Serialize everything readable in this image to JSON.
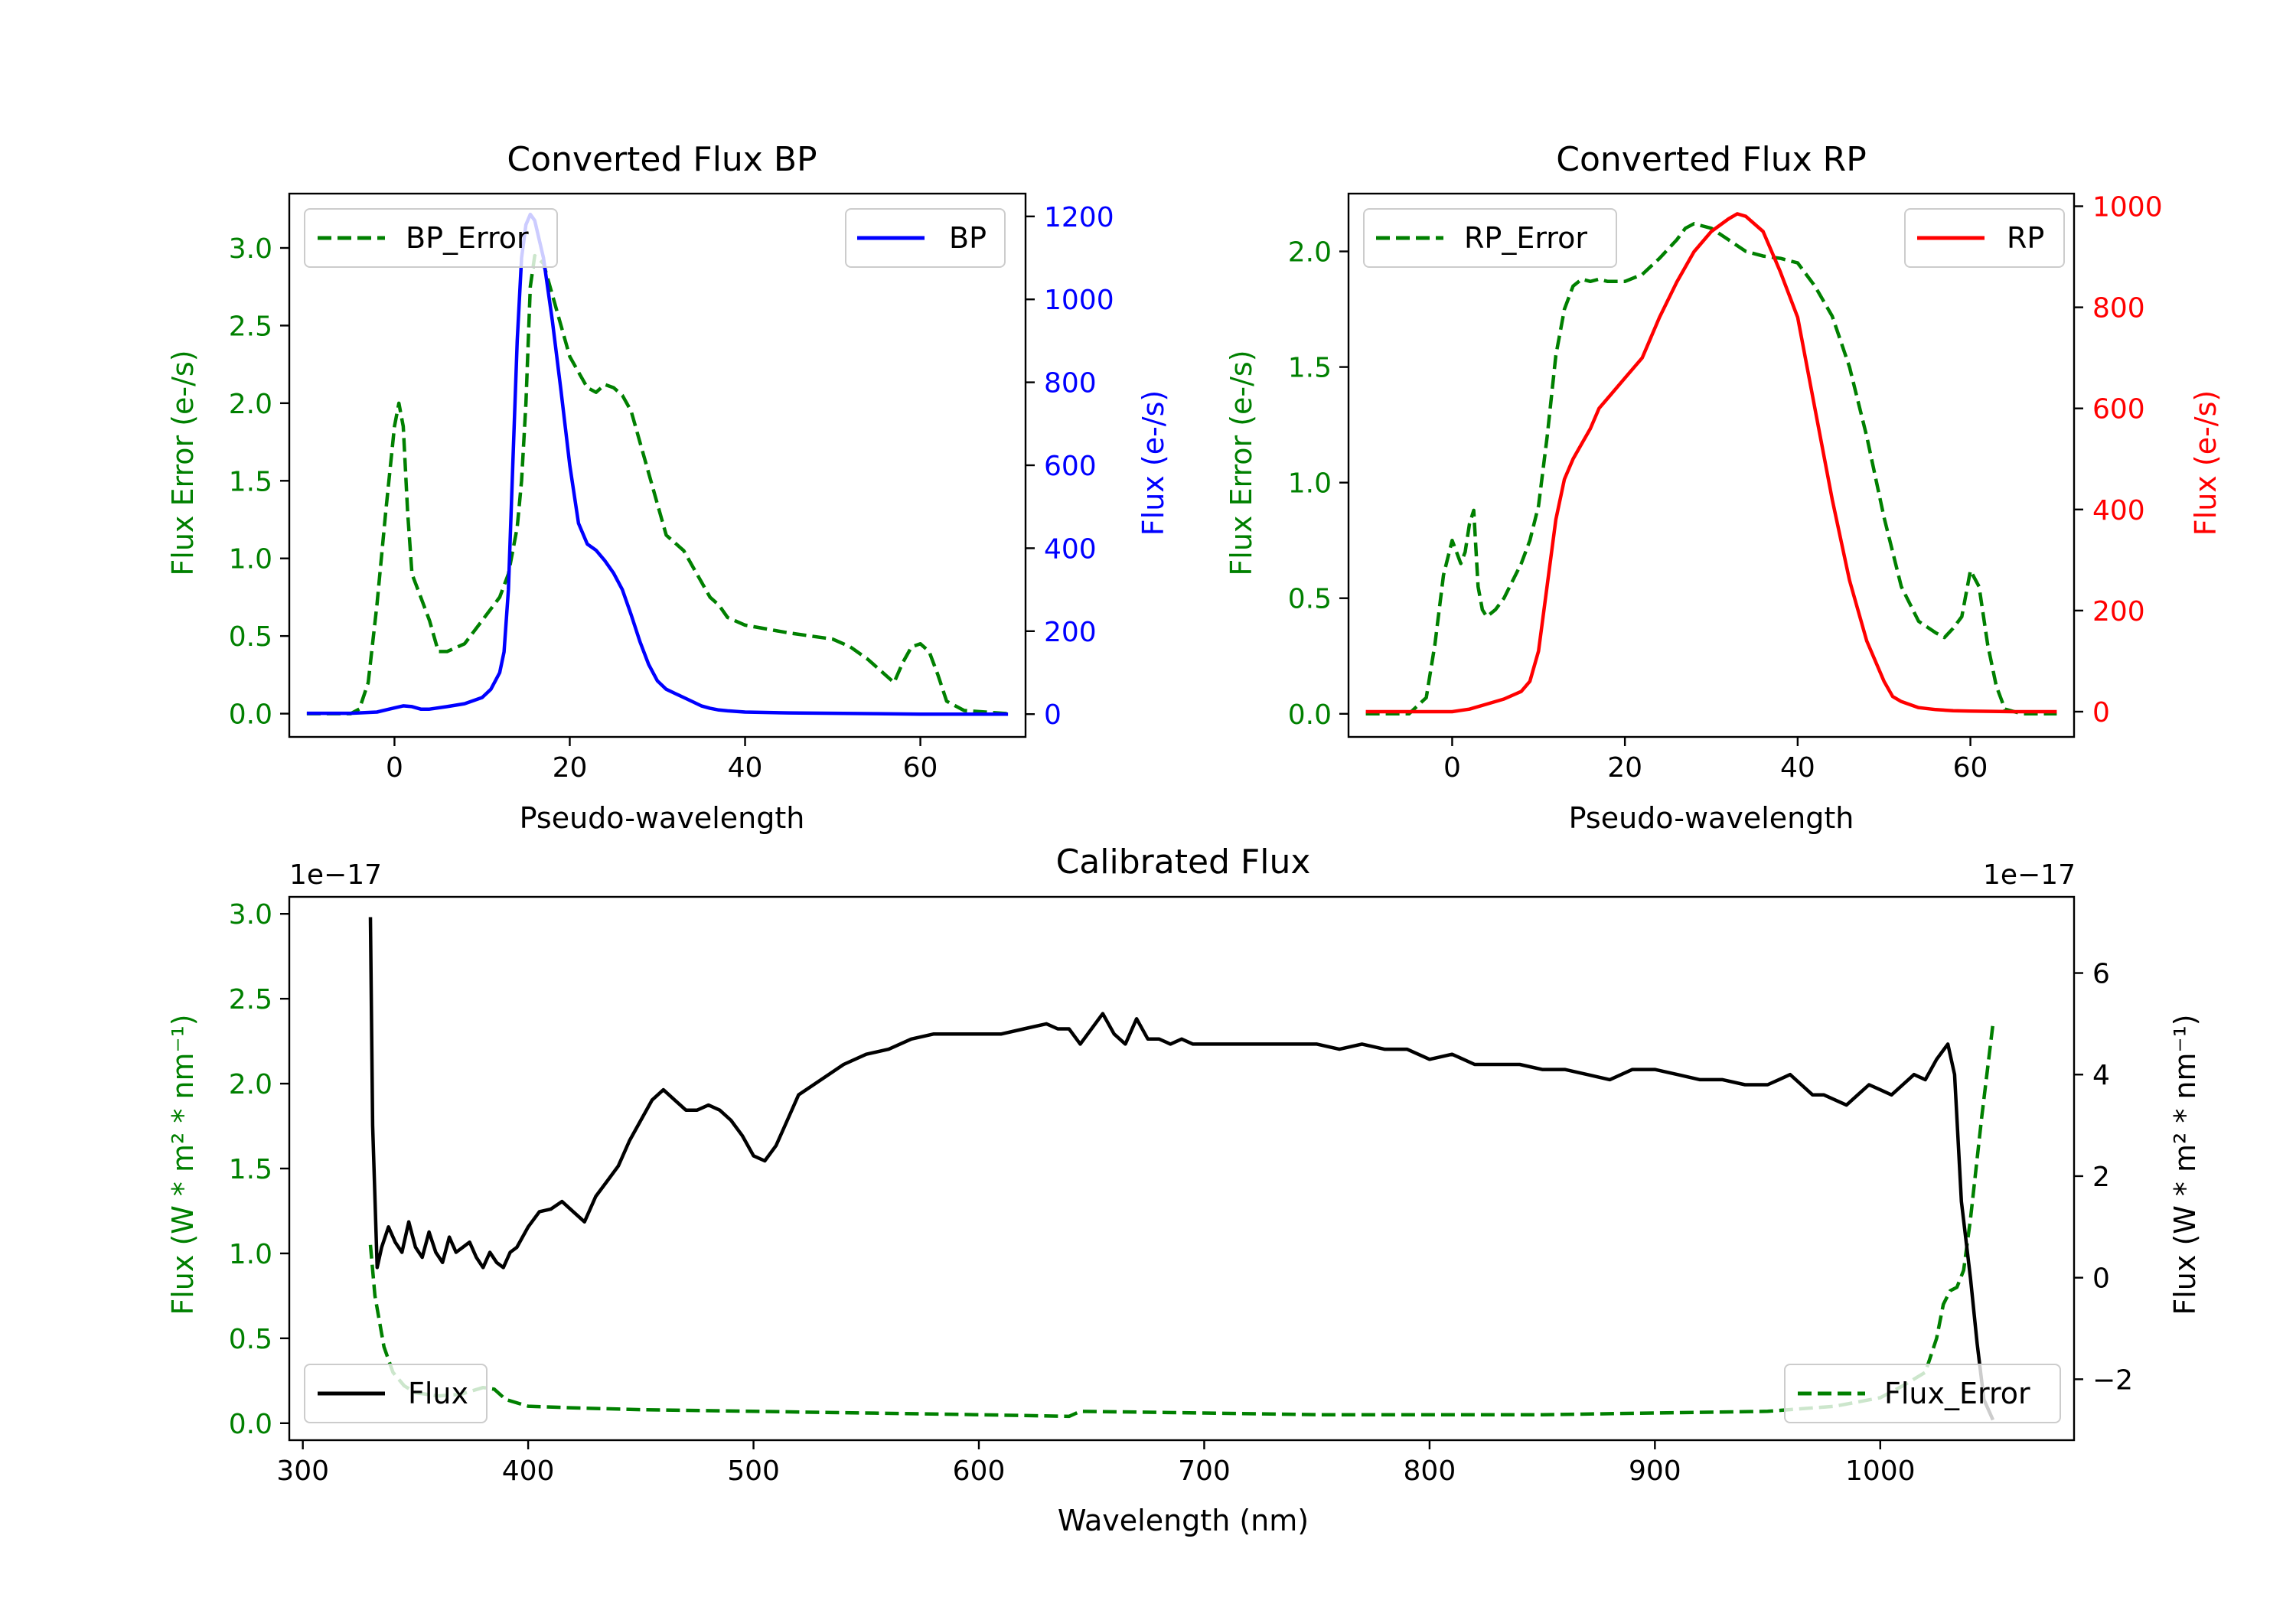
{
  "chart_data": [
    {
      "type": "line",
      "title": "Converted Flux BP",
      "xlabel": "Pseudo-wavelength",
      "ylabel_left": "Flux Error (e-/s)",
      "ylabel_right": "Flux (e-/s)",
      "xlim": [
        -12,
        72
      ],
      "ylim_left": [
        -0.15,
        3.35
      ],
      "ylim_right": [
        -55,
        1255
      ],
      "x_ticks": [
        0,
        20,
        40,
        60
      ],
      "y_ticks_left": [
        0.0,
        0.5,
        1.0,
        1.5,
        2.0,
        2.5,
        3.0
      ],
      "y_ticks_right": [
        0,
        200,
        400,
        600,
        800,
        1000,
        1200
      ],
      "x_tick_labels": [
        "0",
        "20",
        "40",
        "60"
      ],
      "y_tick_labels_left": [
        "0.0",
        "0.5",
        "1.0",
        "1.5",
        "2.0",
        "2.5",
        "3.0"
      ],
      "y_tick_labels_right": [
        "0",
        "200",
        "400",
        "600",
        "800",
        "1000",
        "1200"
      ],
      "colors": {
        "left": "#008000",
        "right": "#0000ff"
      },
      "series": [
        {
          "name": "BP_Error",
          "axis": "left",
          "style": "dashed",
          "color": "#008000",
          "x": [
            -10,
            -5,
            -4,
            -3,
            -2,
            -1,
            0,
            0.5,
            1,
            1.5,
            2,
            3,
            4,
            5,
            6,
            8,
            10,
            12,
            13,
            14,
            14.5,
            15,
            15.5,
            16,
            17,
            18,
            19,
            20,
            21,
            22,
            23,
            24,
            25,
            26,
            27,
            28,
            30,
            31,
            32,
            33,
            34,
            35,
            36,
            37,
            38,
            40,
            42,
            45,
            50,
            52,
            54,
            56,
            57,
            58,
            59,
            60,
            61,
            62,
            63,
            65,
            70
          ],
          "y": [
            0.0,
            0.0,
            0.03,
            0.2,
            0.7,
            1.3,
            1.85,
            2.0,
            1.85,
            1.3,
            0.9,
            0.75,
            0.6,
            0.4,
            0.4,
            0.45,
            0.6,
            0.75,
            0.9,
            1.2,
            1.5,
            2.0,
            2.75,
            2.95,
            2.9,
            2.7,
            2.5,
            2.3,
            2.2,
            2.1,
            2.07,
            2.12,
            2.1,
            2.05,
            1.95,
            1.75,
            1.35,
            1.15,
            1.1,
            1.05,
            0.95,
            0.85,
            0.75,
            0.7,
            0.62,
            0.57,
            0.55,
            0.52,
            0.48,
            0.43,
            0.35,
            0.25,
            0.2,
            0.33,
            0.43,
            0.45,
            0.4,
            0.25,
            0.08,
            0.02,
            0.0
          ]
        },
        {
          "name": "BP",
          "axis": "right",
          "style": "solid",
          "color": "#0000ff",
          "x": [
            -10,
            -5,
            -2,
            0,
            1,
            2,
            3,
            4,
            6,
            8,
            10,
            11,
            12,
            12.5,
            13,
            13.5,
            14,
            14.5,
            15,
            15.5,
            16,
            17,
            18,
            19,
            20,
            21,
            22,
            23,
            24,
            25,
            26,
            27,
            28,
            29,
            30,
            31,
            32,
            33,
            34,
            35,
            36,
            37,
            38,
            40,
            45,
            50,
            55,
            60,
            65,
            70
          ],
          "y": [
            2,
            2,
            5,
            15,
            20,
            18,
            12,
            12,
            18,
            25,
            40,
            60,
            100,
            150,
            300,
            600,
            900,
            1100,
            1180,
            1205,
            1190,
            1100,
            950,
            780,
            600,
            460,
            410,
            395,
            370,
            340,
            300,
            240,
            175,
            120,
            80,
            60,
            50,
            40,
            30,
            20,
            14,
            10,
            8,
            5,
            3,
            2,
            1,
            0,
            0,
            0
          ]
        }
      ]
    },
    {
      "type": "line",
      "title": "Converted Flux RP",
      "xlabel": "Pseudo-wavelength",
      "ylabel_left": "Flux Error (e-/s)",
      "ylabel_right": "Flux (e-/s)",
      "xlim": [
        -12,
        72
      ],
      "ylim_left": [
        -0.1,
        2.25
      ],
      "ylim_right": [
        -50,
        1025
      ],
      "x_ticks": [
        0,
        20,
        40,
        60
      ],
      "y_ticks_left": [
        0.0,
        0.5,
        1.0,
        1.5,
        2.0
      ],
      "y_ticks_right": [
        0,
        200,
        400,
        600,
        800,
        1000
      ],
      "x_tick_labels": [
        "0",
        "20",
        "40",
        "60"
      ],
      "y_tick_labels_left": [
        "0.0",
        "0.5",
        "1.0",
        "1.5",
        "2.0"
      ],
      "y_tick_labels_right": [
        "0",
        "200",
        "400",
        "600",
        "800",
        "1000"
      ],
      "colors": {
        "left": "#008000",
        "right": "#ff0000"
      },
      "series": [
        {
          "name": "RP_Error",
          "axis": "left",
          "style": "dashed",
          "color": "#008000",
          "x": [
            -10,
            -5,
            -3,
            -2,
            -1,
            0,
            0.5,
            1,
            1.5,
            2,
            2.5,
            3,
            3.5,
            4,
            5,
            6,
            8,
            9,
            10,
            11,
            12,
            13,
            14,
            15,
            16,
            17,
            18,
            20,
            22,
            24,
            26,
            27,
            28,
            30,
            32,
            34,
            36,
            38,
            40,
            42,
            44,
            46,
            48,
            50,
            52,
            54,
            56,
            57,
            58,
            59,
            60,
            61,
            62,
            63,
            64,
            66,
            70
          ],
          "y": [
            0.0,
            0.0,
            0.07,
            0.3,
            0.6,
            0.75,
            0.7,
            0.65,
            0.7,
            0.82,
            0.88,
            0.55,
            0.45,
            0.42,
            0.45,
            0.5,
            0.65,
            0.75,
            0.9,
            1.2,
            1.55,
            1.75,
            1.85,
            1.88,
            1.87,
            1.88,
            1.87,
            1.87,
            1.9,
            1.97,
            2.05,
            2.1,
            2.12,
            2.1,
            2.05,
            2.0,
            1.98,
            1.97,
            1.95,
            1.85,
            1.72,
            1.5,
            1.2,
            0.85,
            0.55,
            0.4,
            0.35,
            0.33,
            0.37,
            0.42,
            0.62,
            0.55,
            0.3,
            0.12,
            0.02,
            0.0,
            0.0
          ]
        },
        {
          "name": "RP",
          "axis": "right",
          "style": "solid",
          "color": "#ff0000",
          "x": [
            -10,
            -5,
            0,
            2,
            4,
            6,
            8,
            9,
            10,
            11,
            12,
            13,
            14,
            15,
            16,
            17,
            18,
            20,
            22,
            24,
            26,
            28,
            30,
            32,
            33,
            34,
            36,
            38,
            40,
            42,
            44,
            46,
            48,
            50,
            51,
            52,
            54,
            56,
            58,
            60,
            65,
            70
          ],
          "y": [
            0,
            0,
            0,
            5,
            15,
            25,
            40,
            60,
            120,
            250,
            380,
            460,
            500,
            530,
            560,
            600,
            620,
            660,
            700,
            780,
            850,
            910,
            950,
            975,
            985,
            980,
            950,
            870,
            780,
            600,
            420,
            260,
            140,
            60,
            30,
            20,
            8,
            4,
            2,
            1,
            0,
            0
          ]
        }
      ]
    },
    {
      "type": "line",
      "title": "Calibrated Flux",
      "xlabel": "Wavelength (nm)",
      "ylabel_left": "Flux (W * m² * nm⁻¹)",
      "ylabel_right": "Flux (W * m² * nm⁻¹)",
      "offset_left": "1e−17",
      "offset_right": "1e−17",
      "xlim": [
        294,
        1086
      ],
      "ylim_left": [
        -0.1,
        3.1
      ],
      "ylim_right": [
        -3.2,
        7.5
      ],
      "x_ticks": [
        300,
        400,
        500,
        600,
        700,
        800,
        900,
        1000
      ],
      "y_ticks_left": [
        0.0,
        0.5,
        1.0,
        1.5,
        2.0,
        2.5,
        3.0
      ],
      "y_ticks_right": [
        -2,
        0,
        2,
        4,
        6
      ],
      "x_tick_labels": [
        "300",
        "400",
        "500",
        "600",
        "700",
        "800",
        "900",
        "1000"
      ],
      "y_tick_labels_left": [
        "0.0",
        "0.5",
        "1.0",
        "1.5",
        "2.0",
        "2.5",
        "3.0"
      ],
      "y_tick_labels_right": [
        "−2",
        "0",
        "2",
        "4",
        "6"
      ],
      "colors": {
        "left": "#008000",
        "right": "#000000"
      },
      "series": [
        {
          "name": "Flux_Error",
          "axis": "left",
          "style": "dashed",
          "color": "#008000",
          "x": [
            330,
            332,
            336,
            340,
            345,
            350,
            360,
            370,
            380,
            385,
            390,
            400,
            420,
            450,
            500,
            550,
            600,
            640,
            645,
            700,
            750,
            800,
            850,
            900,
            950,
            980,
            1000,
            1010,
            1020,
            1025,
            1028,
            1031,
            1034,
            1037,
            1040,
            1045,
            1050
          ],
          "y": [
            1.05,
            0.75,
            0.45,
            0.3,
            0.22,
            0.18,
            0.16,
            0.17,
            0.21,
            0.2,
            0.14,
            0.1,
            0.09,
            0.08,
            0.07,
            0.06,
            0.05,
            0.04,
            0.07,
            0.06,
            0.05,
            0.05,
            0.05,
            0.06,
            0.07,
            0.1,
            0.15,
            0.22,
            0.3,
            0.5,
            0.7,
            0.78,
            0.8,
            0.9,
            1.2,
            1.8,
            2.35
          ]
        },
        {
          "name": "Flux",
          "axis": "right",
          "style": "solid",
          "color": "#000000",
          "x": [
            330,
            331,
            333,
            335,
            338,
            341,
            344,
            347,
            350,
            353,
            356,
            359,
            362,
            365,
            368,
            371,
            374,
            377,
            380,
            383,
            386,
            389,
            392,
            395,
            400,
            405,
            410,
            415,
            420,
            425,
            430,
            435,
            440,
            445,
            450,
            455,
            460,
            465,
            470,
            475,
            480,
            485,
            490,
            495,
            500,
            505,
            510,
            515,
            520,
            530,
            540,
            550,
            560,
            570,
            580,
            590,
            600,
            610,
            620,
            630,
            635,
            640,
            645,
            650,
            655,
            660,
            665,
            670,
            675,
            680,
            685,
            690,
            695,
            700,
            710,
            720,
            730,
            740,
            750,
            760,
            770,
            780,
            790,
            800,
            810,
            815,
            820,
            830,
            840,
            850,
            860,
            870,
            880,
            890,
            900,
            910,
            920,
            930,
            940,
            950,
            955,
            960,
            965,
            970,
            975,
            980,
            985,
            990,
            995,
            1000,
            1005,
            1010,
            1015,
            1020,
            1025,
            1030,
            1033,
            1036,
            1040,
            1043,
            1046,
            1050
          ],
          "y": [
            7.1,
            3.0,
            0.2,
            0.6,
            1.0,
            0.7,
            0.5,
            1.1,
            0.6,
            0.4,
            0.9,
            0.5,
            0.3,
            0.8,
            0.5,
            0.6,
            0.7,
            0.4,
            0.2,
            0.5,
            0.3,
            0.2,
            0.5,
            0.6,
            1.0,
            1.3,
            1.35,
            1.5,
            1.3,
            1.1,
            1.6,
            1.9,
            2.2,
            2.7,
            3.1,
            3.5,
            3.7,
            3.5,
            3.3,
            3.3,
            3.4,
            3.3,
            3.1,
            2.8,
            2.4,
            2.3,
            2.6,
            3.1,
            3.6,
            3.9,
            4.2,
            4.4,
            4.5,
            4.7,
            4.8,
            4.8,
            4.8,
            4.8,
            4.9,
            5.0,
            4.9,
            4.9,
            4.6,
            4.9,
            5.2,
            4.8,
            4.6,
            5.1,
            4.7,
            4.7,
            4.6,
            4.7,
            4.6,
            4.6,
            4.6,
            4.6,
            4.6,
            4.6,
            4.6,
            4.5,
            4.6,
            4.5,
            4.5,
            4.3,
            4.4,
            4.3,
            4.2,
            4.2,
            4.2,
            4.1,
            4.1,
            4.0,
            3.9,
            4.1,
            4.1,
            4.0,
            3.9,
            3.9,
            3.8,
            3.8,
            3.9,
            4.0,
            3.8,
            3.6,
            3.6,
            3.5,
            3.4,
            3.6,
            3.8,
            3.7,
            3.6,
            3.8,
            4.0,
            3.9,
            4.3,
            4.6,
            4.0,
            1.5,
            0.0,
            -1.3,
            -2.4,
            -2.8
          ]
        }
      ]
    }
  ]
}
